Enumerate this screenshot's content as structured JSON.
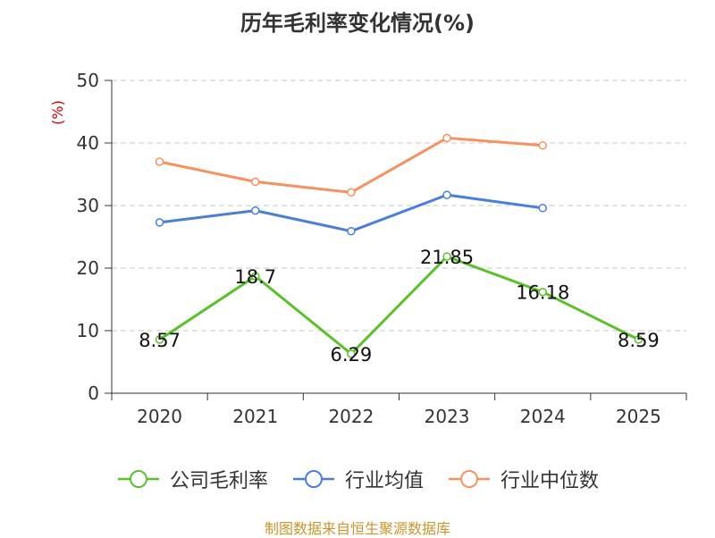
{
  "chart_data": {
    "type": "line",
    "title": "历年毛利率变化情况(%)",
    "ylabel": "(%)",
    "categories": [
      "2020",
      "2021",
      "2022",
      "2023",
      "2024",
      "2025"
    ],
    "ylim": [
      0,
      50
    ],
    "yticks": [
      0,
      10,
      20,
      30,
      40,
      50
    ],
    "grid": true,
    "legend_position": "bottom",
    "series": [
      {
        "name": "公司毛利率",
        "color": "#5ac12b",
        "values": [
          8.57,
          18.7,
          6.29,
          21.85,
          16.18,
          8.59
        ],
        "labels": [
          "8.57",
          "18.7",
          "6.29",
          "21.85",
          "16.18",
          "8.59"
        ]
      },
      {
        "name": "行业均值",
        "color": "#4a7fd9",
        "values": [
          27.3,
          29.2,
          25.9,
          31.7,
          29.6,
          null
        ]
      },
      {
        "name": "行业中位数",
        "color": "#f5925f",
        "values": [
          37.0,
          33.8,
          32.1,
          40.8,
          39.6,
          null
        ]
      }
    ]
  },
  "source": "制图数据来自恒生聚源数据库"
}
